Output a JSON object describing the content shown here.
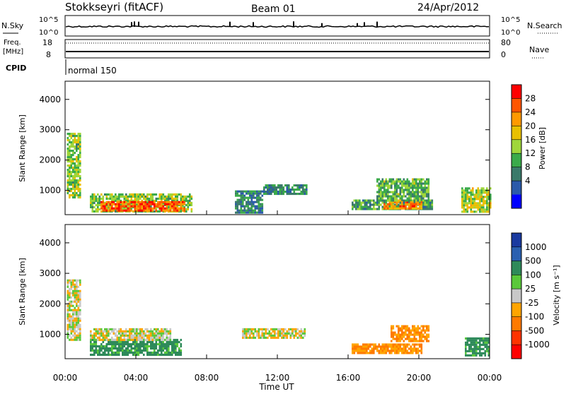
{
  "header": {
    "title": "Stokkseyri (fitACF)",
    "beam": "Beam 01",
    "date": "24/Apr/2012"
  },
  "noise_panel": {
    "left_label": "N.Sky",
    "left_ticks": [
      "10^5",
      "10^0"
    ],
    "right_ticks": [
      "10^5",
      "10^0"
    ],
    "right_label": "N.Search"
  },
  "freq_panel": {
    "left_label_top": "Freq.",
    "left_label_unit": "[MHz]",
    "left_ticks": [
      "18",
      "8"
    ],
    "right_ticks": [
      "80",
      "0"
    ],
    "right_label": "Nave"
  },
  "cpid_panel": {
    "label": "CPID",
    "mode": "normal 150"
  },
  "x_axis": {
    "ticks": [
      "00:00",
      "04:00",
      "08:00",
      "12:00",
      "16:00",
      "20:00",
      "00:00"
    ],
    "label": "Time UT"
  },
  "power_panel": {
    "ylabel": "Slant Range [km]",
    "yticks": [
      "4000",
      "3000",
      "2000",
      "1000"
    ],
    "colorbar_label": "Power [dB]",
    "colorbar_ticks": [
      "28",
      "24",
      "20",
      "16",
      "12",
      "8",
      "4"
    ],
    "colorbar_colors": [
      "#ff0000",
      "#ff5500",
      "#ff9900",
      "#e8c000",
      "#9fd63a",
      "#3aaa4a",
      "#3a7a6a",
      "#2a5aaa",
      "#0000ff"
    ]
  },
  "velocity_panel": {
    "ylabel": "Slant Range [km]",
    "yticks": [
      "4000",
      "3000",
      "2000",
      "1000"
    ],
    "colorbar_label": "Velocity [m s⁻¹]",
    "colorbar_ticks": [
      "1000",
      "500",
      "100",
      "25",
      "-25",
      "-100",
      "-500",
      "-1000"
    ],
    "colorbar_colors": [
      "#1a3aa0",
      "#2a60b0",
      "#2e8a5a",
      "#5ac83a",
      "#c8c8c8",
      "#ffa500",
      "#ff7a00",
      "#ff3300",
      "#ff0000"
    ]
  },
  "chart_data": [
    {
      "type": "heatmap",
      "panel": "power",
      "xlabel": "Time UT",
      "ylabel": "Slant Range [km]",
      "xlim": [
        0,
        24
      ],
      "ylim": [
        200,
        4600
      ],
      "clim": [
        0,
        30
      ],
      "colorbar_label": "Power [dB]",
      "regions": [
        {
          "t0": 0.1,
          "t1": 0.9,
          "r0": 800,
          "r1": 2900,
          "value": 14
        },
        {
          "t0": 1.4,
          "t1": 7.2,
          "r0": 300,
          "r1": 900,
          "value": 14
        },
        {
          "t0": 2.0,
          "t1": 6.8,
          "r0": 350,
          "r1": 650,
          "value": 26
        },
        {
          "t0": 9.6,
          "t1": 11.2,
          "r0": 300,
          "r1": 1000,
          "value": 8
        },
        {
          "t0": 11.2,
          "t1": 13.6,
          "r0": 900,
          "r1": 1200,
          "value": 8
        },
        {
          "t0": 16.2,
          "t1": 20.8,
          "r0": 400,
          "r1": 700,
          "value": 10
        },
        {
          "t0": 18.0,
          "t1": 20.2,
          "r0": 420,
          "r1": 650,
          "value": 24
        },
        {
          "t0": 17.6,
          "t1": 20.6,
          "r0": 700,
          "r1": 1400,
          "value": 12
        },
        {
          "t0": 22.4,
          "t1": 24.0,
          "r0": 300,
          "r1": 1100,
          "value": 16
        }
      ]
    },
    {
      "type": "heatmap",
      "panel": "velocity",
      "xlabel": "Time UT",
      "ylabel": "Slant Range [km]",
      "xlim": [
        0,
        24
      ],
      "ylim": [
        200,
        4600
      ],
      "clim": [
        -1000,
        1000
      ],
      "colorbar_label": "Velocity [m s⁻¹]",
      "regions": [
        {
          "t0": 0.1,
          "t1": 0.9,
          "r0": 800,
          "r1": 2800,
          "value": 0
        },
        {
          "t0": 1.4,
          "t1": 6.6,
          "r0": 300,
          "r1": 850,
          "value": 150
        },
        {
          "t0": 1.4,
          "t1": 6.0,
          "r0": 850,
          "r1": 1200,
          "value": 0
        },
        {
          "t0": 10.0,
          "t1": 13.6,
          "r0": 900,
          "r1": 1200,
          "value": 0
        },
        {
          "t0": 16.2,
          "t1": 20.2,
          "r0": 400,
          "r1": 700,
          "value": -100
        },
        {
          "t0": 18.4,
          "t1": 20.6,
          "r0": 800,
          "r1": 1300,
          "value": -100
        },
        {
          "t0": 22.6,
          "t1": 24.0,
          "r0": 300,
          "r1": 900,
          "value": 150
        }
      ]
    }
  ]
}
